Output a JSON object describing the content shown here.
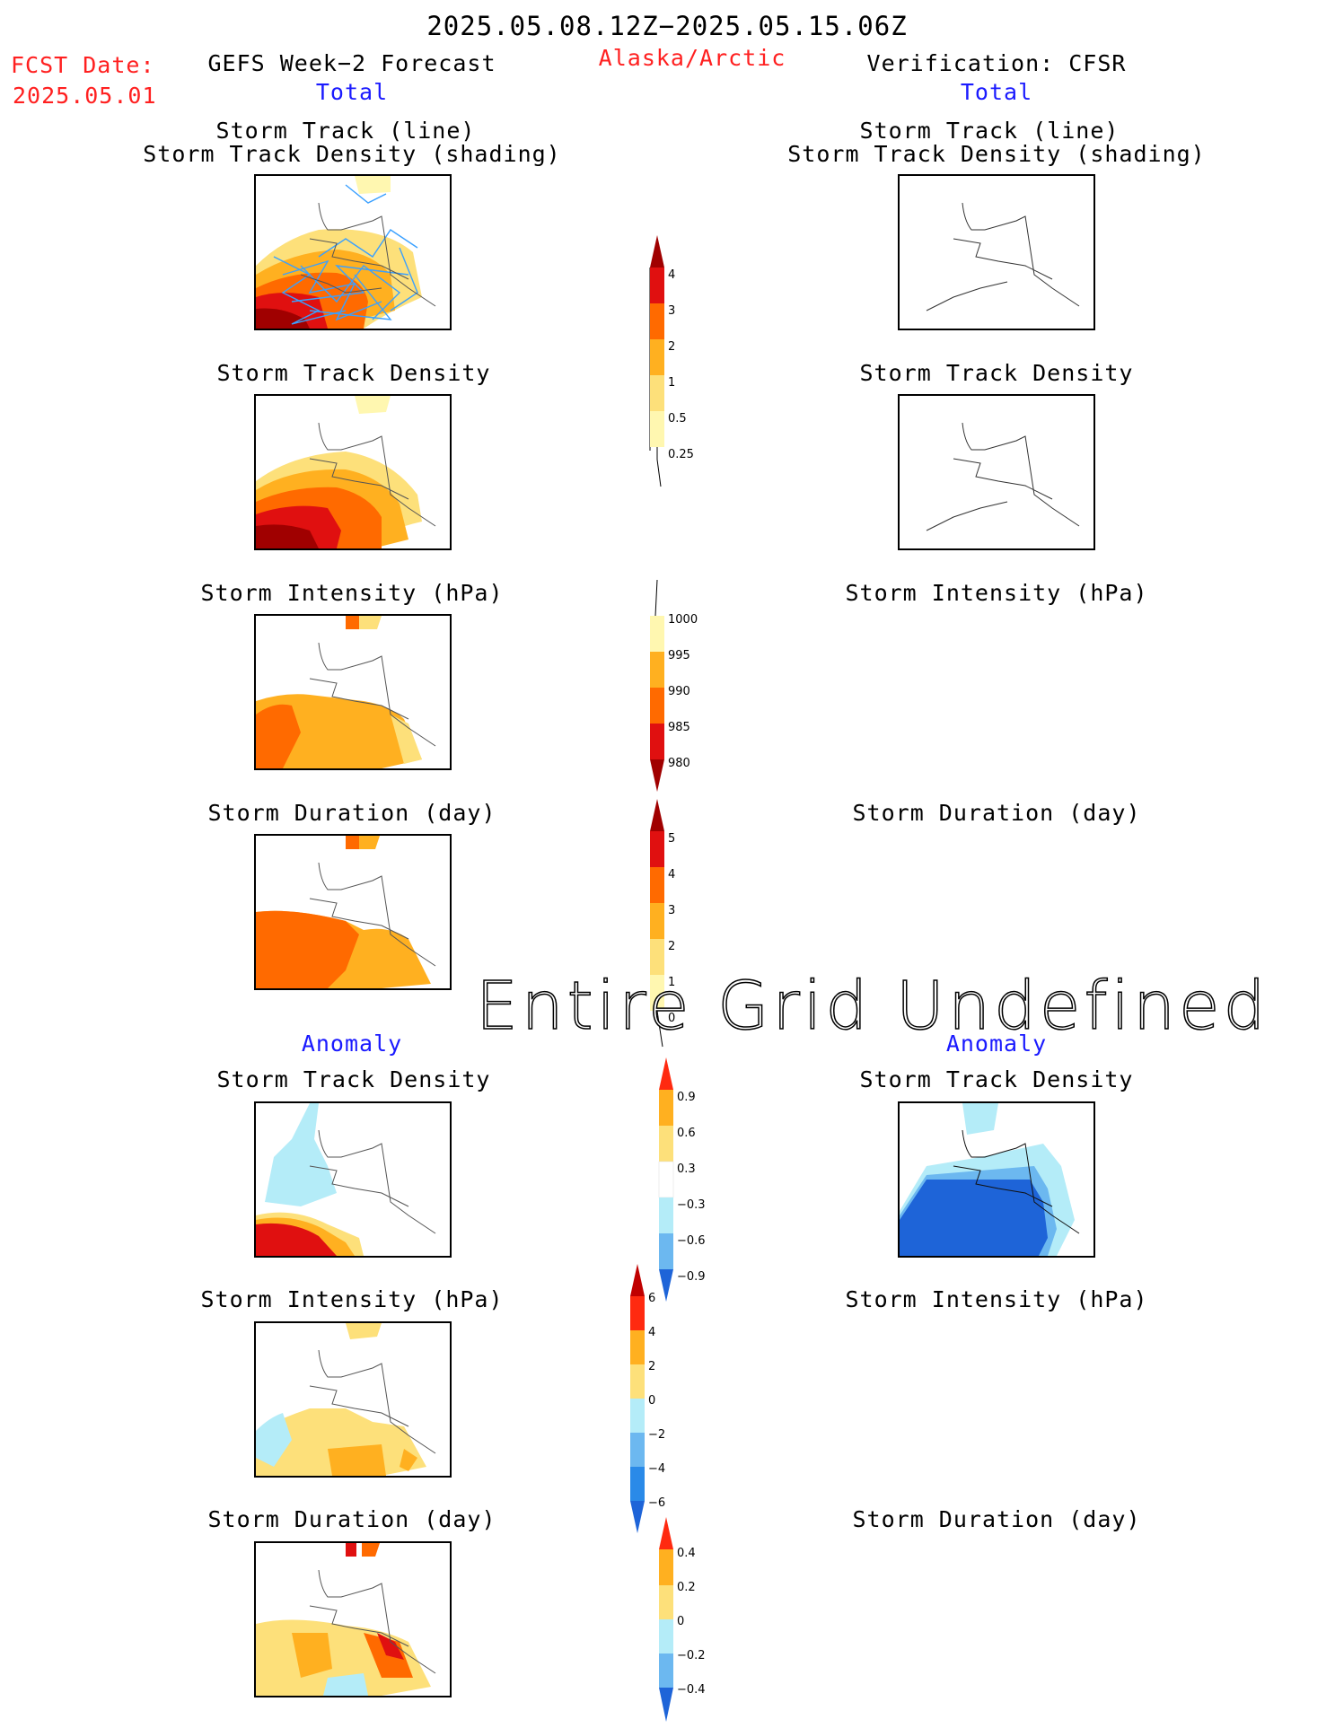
{
  "header": {
    "date_range": "2025.05.08.12Z−2025.05.15.06Z",
    "fcst_label": "FCST Date:",
    "fcst_date": "2025.05.01",
    "left_title": "GEFS Week−2 Forecast",
    "region": "Alaska/Arctic",
    "right_title": "Verification: CFSR",
    "total_left": "Total",
    "total_right": "Total"
  },
  "panels": {
    "track_line": "Storm Track (line)",
    "track_shading": "Storm Track Density (shading)",
    "density": "Storm Track Density",
    "intensity": "Storm Intensity (hPa)",
    "duration": "Storm Duration (day)"
  },
  "anomaly": {
    "left": "Anomaly",
    "right": "Anomaly"
  },
  "undefined_msg": "Entire Grid Undefined",
  "colorbars": {
    "density": [
      "4",
      "3",
      "2",
      "1",
      "0.5",
      "0.25"
    ],
    "intensity": [
      "1000",
      "995",
      "990",
      "985",
      "980"
    ],
    "duration": [
      "5",
      "4",
      "3",
      "2",
      "1",
      "0"
    ],
    "density_anom": [
      "0.9",
      "0.6",
      "0.3",
      "−0.3",
      "−0.6",
      "−0.9"
    ],
    "intensity_anom": [
      "6",
      "4",
      "2",
      "0",
      "−2",
      "−4",
      "−6"
    ],
    "duration_anom": [
      "0.4",
      "0.2",
      "0",
      "−0.2",
      "−0.4"
    ]
  },
  "colors": {
    "pale_yellow": "#fff7b0",
    "light_orange": "#fde07a",
    "orange": "#ffb020",
    "dark_orange": "#ff6a00",
    "red": "#e01010",
    "dark_red": "#a00000",
    "light_blue": "#b4ecf8",
    "mid_blue": "#6cb8f0",
    "blue": "#1e64d8",
    "track_line": "#3aa0ff"
  }
}
